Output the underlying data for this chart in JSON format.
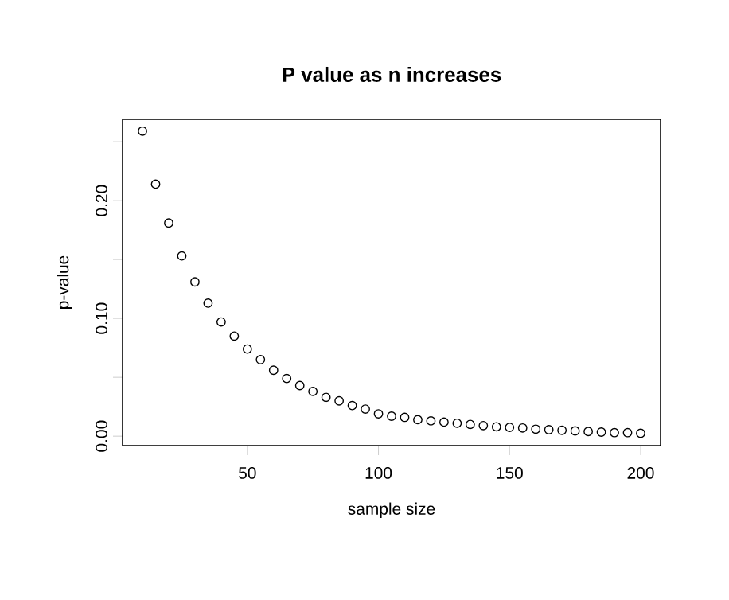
{
  "chart_data": {
    "type": "scatter",
    "title": "**P value as n increases**",
    "xlabel": "sample size",
    "ylabel": "p-value",
    "x": [
      10,
      15,
      20,
      25,
      30,
      35,
      40,
      45,
      50,
      55,
      60,
      65,
      70,
      75,
      80,
      85,
      90,
      95,
      100,
      105,
      110,
      115,
      120,
      125,
      130,
      135,
      140,
      145,
      150,
      155,
      160,
      165,
      170,
      175,
      180,
      185,
      190,
      195,
      200
    ],
    "values": [
      0.259,
      0.214,
      0.181,
      0.153,
      0.131,
      0.113,
      0.097,
      0.085,
      0.074,
      0.065,
      0.056,
      0.049,
      0.043,
      0.038,
      0.033,
      0.03,
      0.026,
      0.023,
      0.019,
      0.017,
      0.016,
      0.014,
      0.013,
      0.012,
      0.011,
      0.01,
      0.009,
      0.008,
      0.0075,
      0.007,
      0.006,
      0.0055,
      0.005,
      0.0045,
      0.004,
      0.0035,
      0.003,
      0.003,
      0.0025
    ],
    "color": "#000000",
    "marker": "circle",
    "grid": false,
    "xlim": [
      2.4,
      207.6
    ],
    "ylim": [
      -0.008,
      0.269
    ],
    "xticks": [
      50,
      100,
      150,
      200
    ],
    "yticks": [
      {
        "value": 0,
        "label": "0.00"
      },
      {
        "value": 0.05,
        "label": null
      },
      {
        "value": 0.1,
        "label": "0.10"
      },
      {
        "value": 0.15,
        "label": null
      },
      {
        "value": 0.2,
        "label": "0.20"
      },
      {
        "value": 0.25,
        "label": null
      }
    ]
  }
}
